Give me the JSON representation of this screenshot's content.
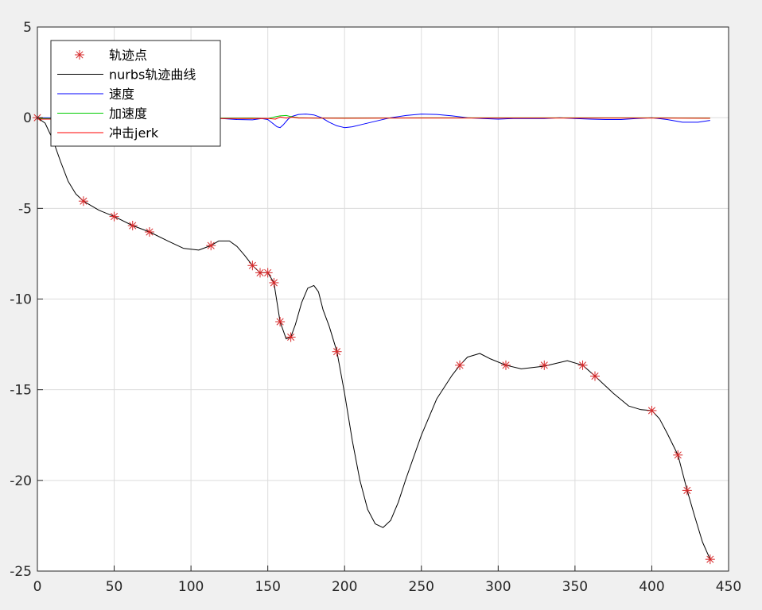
{
  "chart_data": {
    "type": "line",
    "title": "",
    "xlabel": "",
    "ylabel": "",
    "xlim": [
      0,
      450
    ],
    "ylim": [
      -25,
      5
    ],
    "xticks": [
      0,
      50,
      100,
      150,
      200,
      250,
      300,
      350,
      400,
      450
    ],
    "yticks": [
      5,
      0,
      -5,
      -10,
      -15,
      -20,
      -25
    ],
    "grid": true,
    "legend_position": "top-left",
    "legend": [
      {
        "label": "轨迹点",
        "style": "marker",
        "color": "#d62728"
      },
      {
        "label": "nurbs轨迹曲线",
        "style": "line",
        "color": "#000000"
      },
      {
        "label": "速度",
        "style": "line",
        "color": "#0000ff"
      },
      {
        "label": "加速度",
        "style": "line",
        "color": "#00cc00"
      },
      {
        "label": "冲击jerk",
        "style": "line",
        "color": "#ff0000"
      }
    ],
    "trajectory_points": {
      "name": "轨迹点",
      "x": [
        0,
        30,
        50,
        62,
        73,
        113,
        140,
        145,
        150,
        154,
        158,
        165,
        195,
        275,
        305,
        330,
        355,
        363,
        400,
        417,
        423,
        438
      ],
      "y": [
        0,
        -4.6,
        -5.45,
        -5.95,
        -6.3,
        -7.05,
        -8.15,
        -8.55,
        -8.55,
        -9.1,
        -11.25,
        -12.1,
        -12.9,
        -13.65,
        -13.65,
        -13.65,
        -13.65,
        -14.25,
        -16.15,
        -18.6,
        -20.55,
        -24.35
      ]
    },
    "series": [
      {
        "name": "nurbs轨迹曲线",
        "color": "#000000",
        "x": [
          0,
          5,
          10,
          15,
          20,
          25,
          30,
          40,
          50,
          62,
          73,
          85,
          95,
          105,
          113,
          118,
          125,
          130,
          135,
          140,
          145,
          150,
          154,
          158,
          162,
          165,
          168,
          172,
          176,
          180,
          183,
          186,
          190,
          195,
          200,
          205,
          210,
          215,
          220,
          225,
          230,
          235,
          240,
          250,
          260,
          270,
          275,
          280,
          288,
          295,
          305,
          315,
          330,
          345,
          355,
          363,
          375,
          385,
          393,
          400,
          405,
          410,
          417,
          423,
          428,
          433,
          438
        ],
        "y": [
          0,
          -0.3,
          -1.2,
          -2.4,
          -3.5,
          -4.2,
          -4.6,
          -5.1,
          -5.45,
          -5.95,
          -6.3,
          -6.8,
          -7.2,
          -7.3,
          -7.05,
          -6.8,
          -6.8,
          -7.1,
          -7.6,
          -8.15,
          -8.55,
          -8.55,
          -9.1,
          -11.25,
          -12.2,
          -12.1,
          -11.4,
          -10.2,
          -9.4,
          -9.25,
          -9.6,
          -10.6,
          -11.5,
          -12.9,
          -15.2,
          -17.8,
          -20.0,
          -21.6,
          -22.4,
          -22.6,
          -22.2,
          -21.2,
          -19.9,
          -17.5,
          -15.5,
          -14.2,
          -13.65,
          -13.2,
          -13.0,
          -13.3,
          -13.65,
          -13.85,
          -13.7,
          -13.4,
          -13.65,
          -14.25,
          -15.2,
          -15.9,
          -16.1,
          -16.15,
          -16.6,
          -17.4,
          -18.6,
          -20.55,
          -22.0,
          -23.4,
          -24.35
        ]
      },
      {
        "name": "速度",
        "color": "#0000ff",
        "x": [
          0,
          20,
          40,
          60,
          80,
          100,
          113,
          120,
          130,
          140,
          146,
          150,
          153,
          156,
          158,
          160,
          163,
          165,
          170,
          175,
          180,
          185,
          190,
          195,
          200,
          205,
          210,
          220,
          230,
          240,
          250,
          260,
          270,
          280,
          290,
          300,
          310,
          320,
          330,
          340,
          350,
          360,
          370,
          380,
          390,
          400,
          410,
          420,
          430,
          438
        ],
        "y": [
          0,
          -0.02,
          -0.05,
          -0.05,
          -0.06,
          -0.05,
          -0.03,
          -0.05,
          -0.1,
          -0.12,
          -0.05,
          -0.1,
          -0.3,
          -0.5,
          -0.55,
          -0.4,
          -0.1,
          0.05,
          0.18,
          0.2,
          0.15,
          0,
          -0.25,
          -0.45,
          -0.55,
          -0.5,
          -0.4,
          -0.2,
          0,
          0.12,
          0.2,
          0.18,
          0.1,
          0,
          -0.05,
          -0.08,
          -0.05,
          -0.05,
          -0.05,
          0,
          -0.05,
          -0.08,
          -0.1,
          -0.1,
          -0.05,
          0,
          -0.1,
          -0.25,
          -0.25,
          -0.15
        ]
      },
      {
        "name": "加速度",
        "color": "#00cc00",
        "x": [
          0,
          50,
          100,
          140,
          150,
          155,
          158,
          162,
          165,
          170,
          180,
          200,
          250,
          300,
          350,
          400,
          438
        ],
        "y": [
          -0.05,
          -0.04,
          -0.03,
          -0.02,
          -0.05,
          0.05,
          0.1,
          0.12,
          0.06,
          0,
          -0.02,
          -0.02,
          -0.01,
          -0.01,
          -0.01,
          -0.01,
          -0.02
        ]
      },
      {
        "name": "冲击jerk",
        "color": "#ff0000",
        "x": [
          0,
          50,
          100,
          150,
          155,
          158,
          162,
          166,
          170,
          200,
          250,
          300,
          350,
          400,
          438
        ],
        "y": [
          -0.08,
          -0.07,
          -0.05,
          -0.04,
          -0.08,
          0.04,
          -0.02,
          0.03,
          -0.02,
          -0.03,
          -0.02,
          -0.02,
          -0.02,
          -0.02,
          -0.03
        ]
      }
    ]
  }
}
